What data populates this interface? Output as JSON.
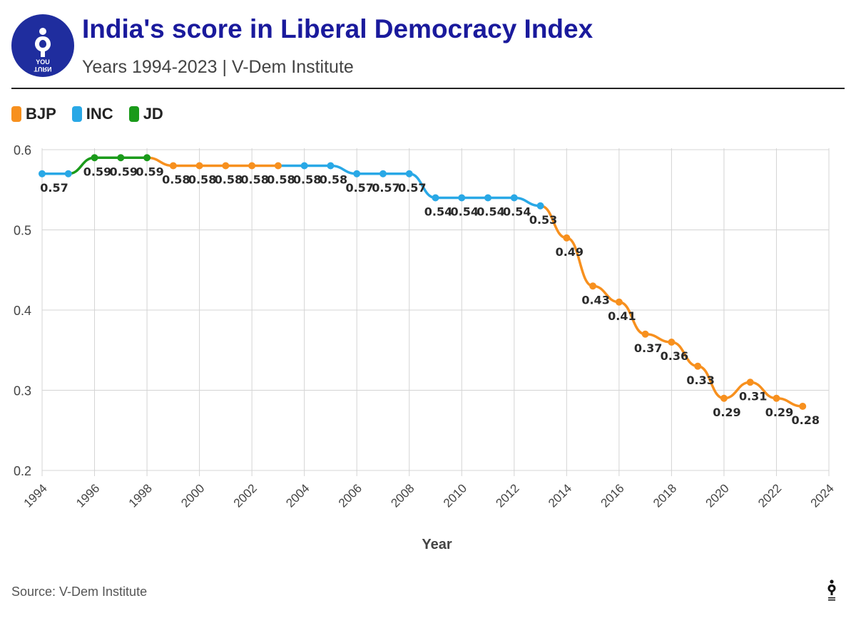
{
  "header": {
    "logo_line1": "YOU",
    "logo_line2": "TURN",
    "title": "India's score in Liberal Democracy Index",
    "subtitle": "Years 1994-2023 | V-Dem Institute"
  },
  "footer": {
    "source": "Source: V-Dem Institute"
  },
  "chart_data": {
    "type": "line",
    "xlabel": "Year",
    "ylabel": "",
    "xlim": [
      1994,
      2024
    ],
    "ylim": [
      0.2,
      0.6
    ],
    "x_ticks": [
      "1994",
      "1996",
      "1998",
      "2000",
      "2002",
      "2004",
      "2006",
      "2008",
      "2010",
      "2012",
      "2014",
      "2016",
      "2018",
      "2020",
      "2022",
      "2024"
    ],
    "y_ticks": [
      "0.2",
      "0.3",
      "0.4",
      "0.5",
      "0.6"
    ],
    "grid": true,
    "legend_position": "top-left",
    "legend": [
      {
        "name": "BJP",
        "color": "#f7901e"
      },
      {
        "name": "INC",
        "color": "#29a8e6"
      },
      {
        "name": "JD",
        "color": "#1a9a1a"
      }
    ],
    "points": [
      {
        "x": 1994,
        "y": 0.57,
        "label": "0.57",
        "party": "INC"
      },
      {
        "x": 1995,
        "y": 0.57,
        "label": "",
        "party": "INC"
      },
      {
        "x": 1996,
        "y": 0.59,
        "label": "0.59",
        "party": "JD"
      },
      {
        "x": 1997,
        "y": 0.59,
        "label": "0.59",
        "party": "JD"
      },
      {
        "x": 1998,
        "y": 0.59,
        "label": "0.59",
        "party": "JD"
      },
      {
        "x": 1999,
        "y": 0.58,
        "label": "0.58",
        "party": "BJP"
      },
      {
        "x": 2000,
        "y": 0.58,
        "label": "0.58",
        "party": "BJP"
      },
      {
        "x": 2001,
        "y": 0.58,
        "label": "0.58",
        "party": "BJP"
      },
      {
        "x": 2002,
        "y": 0.58,
        "label": "0.58",
        "party": "BJP"
      },
      {
        "x": 2003,
        "y": 0.58,
        "label": "0.58",
        "party": "BJP"
      },
      {
        "x": 2004,
        "y": 0.58,
        "label": "0.58",
        "party": "INC"
      },
      {
        "x": 2005,
        "y": 0.58,
        "label": "0.58",
        "party": "INC"
      },
      {
        "x": 2006,
        "y": 0.57,
        "label": "0.57",
        "party": "INC"
      },
      {
        "x": 2007,
        "y": 0.57,
        "label": "0.57",
        "party": "INC"
      },
      {
        "x": 2008,
        "y": 0.57,
        "label": "0.57",
        "party": "INC"
      },
      {
        "x": 2009,
        "y": 0.54,
        "label": "0.54",
        "party": "INC"
      },
      {
        "x": 2010,
        "y": 0.54,
        "label": "0.54",
        "party": "INC"
      },
      {
        "x": 2011,
        "y": 0.54,
        "label": "0.54",
        "party": "INC"
      },
      {
        "x": 2012,
        "y": 0.54,
        "label": "0.54",
        "party": "INC"
      },
      {
        "x": 2013,
        "y": 0.53,
        "label": "0.53",
        "party": "INC"
      },
      {
        "x": 2014,
        "y": 0.49,
        "label": "0.49",
        "party": "BJP"
      },
      {
        "x": 2015,
        "y": 0.43,
        "label": "0.43",
        "party": "BJP"
      },
      {
        "x": 2016,
        "y": 0.41,
        "label": "0.41",
        "party": "BJP"
      },
      {
        "x": 2017,
        "y": 0.37,
        "label": "0.37",
        "party": "BJP"
      },
      {
        "x": 2018,
        "y": 0.36,
        "label": "0.36",
        "party": "BJP"
      },
      {
        "x": 2019,
        "y": 0.33,
        "label": "0.33",
        "party": "BJP"
      },
      {
        "x": 2020,
        "y": 0.29,
        "label": "0.29",
        "party": "BJP"
      },
      {
        "x": 2021,
        "y": 0.31,
        "label": "0.31",
        "party": "BJP"
      },
      {
        "x": 2022,
        "y": 0.29,
        "label": "0.29",
        "party": "BJP"
      },
      {
        "x": 2023,
        "y": 0.28,
        "label": "0.28",
        "party": "BJP"
      }
    ]
  }
}
